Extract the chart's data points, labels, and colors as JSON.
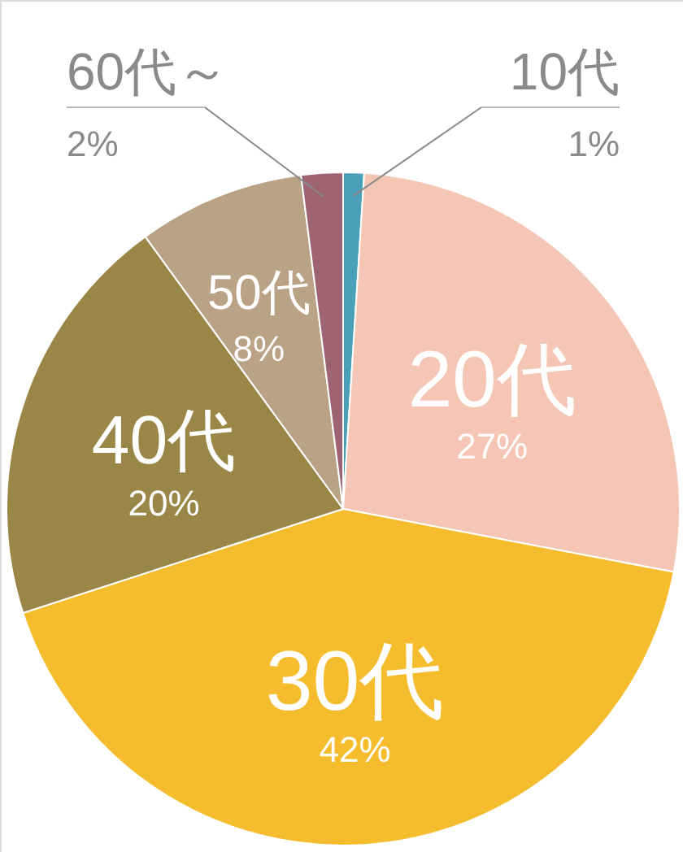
{
  "chart_data": {
    "type": "pie",
    "categories": [
      "10代",
      "20代",
      "30代",
      "40代",
      "50代",
      "60代～"
    ],
    "values": [
      1,
      27,
      42,
      20,
      8,
      2
    ],
    "colors": [
      "#4aa0b8",
      "#f5c6b5",
      "#f5bc2d",
      "#9a8747",
      "#b9a286",
      "#9e6474"
    ],
    "value_labels": [
      "1%",
      "27%",
      "42%",
      "20%",
      "8%",
      "2%"
    ]
  }
}
